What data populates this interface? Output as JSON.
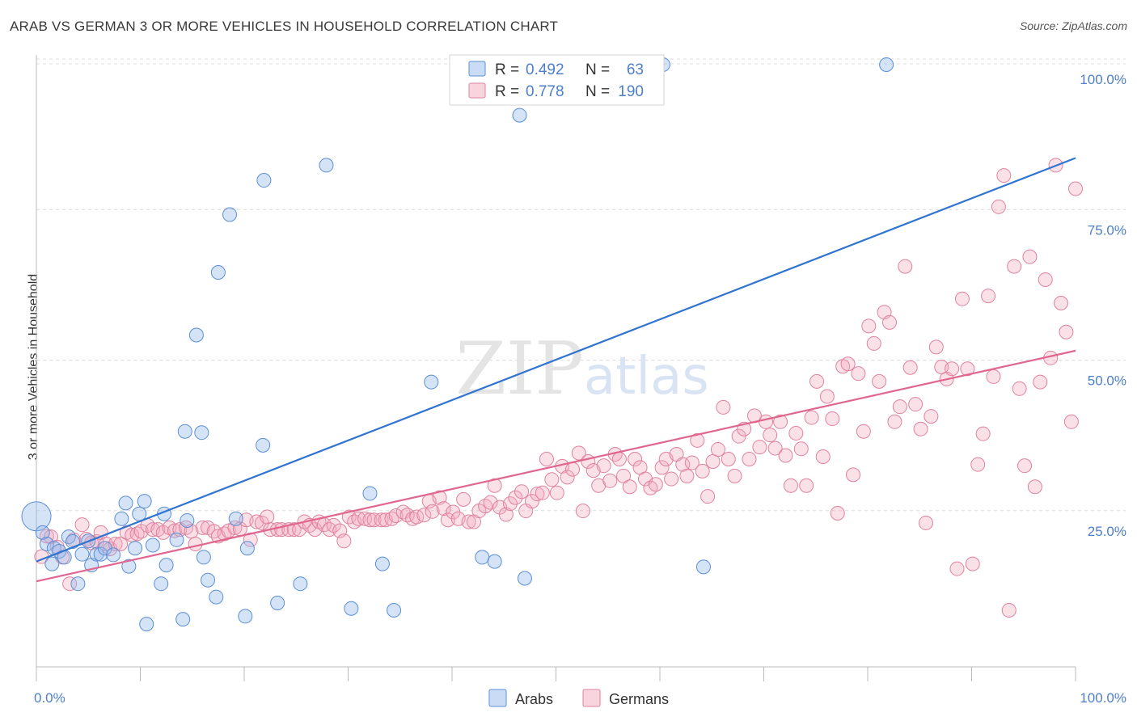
{
  "title": "ARAB VS GERMAN 3 OR MORE VEHICLES IN HOUSEHOLD CORRELATION CHART",
  "source": "Source: ZipAtlas.com",
  "watermark": "ZIPatlas",
  "colors": {
    "arabs": "#5b8fd6",
    "germans": "#e0829e",
    "arabs_line": "#2f74d0",
    "germans_line": "#e0668f",
    "tick_text": "#4d7fcc",
    "grid": "#dcdcdc"
  },
  "legend": {
    "rows": [
      {
        "r_label": "R =",
        "r_value": "0.492",
        "n_label": "N =",
        "n_value": "63"
      },
      {
        "r_label": "R =",
        "r_value": "0.778",
        "n_label": "N =",
        "n_value": "190"
      }
    ]
  },
  "chart_data": {
    "type": "scatter",
    "title": "ARAB VS GERMAN 3 OR MORE VEHICLES IN HOUSEHOLD CORRELATION CHART",
    "ylabel": "3 or more Vehicles in Household",
    "xlabel": "",
    "xlim": [
      0,
      100
    ],
    "ylim": [
      0,
      100
    ],
    "x_tick_labels": [
      "0.0%",
      "100.0%"
    ],
    "y_tick_labels": [
      "25.0%",
      "50.0%",
      "75.0%",
      "100.0%"
    ],
    "y_ticks": [
      25,
      50,
      75,
      100
    ],
    "grid": true,
    "legend_position": "bottom",
    "series": [
      {
        "name": "Arabs",
        "r": 0.492,
        "n": 63,
        "trend": {
          "x": [
            0,
            100
          ],
          "y": [
            17.5,
            84.5
          ]
        },
        "points": [
          [
            0,
            25
          ],
          [
            0.6,
            22.3
          ],
          [
            1,
            20.4
          ],
          [
            1.5,
            17.1
          ],
          [
            1.7,
            19.7
          ],
          [
            2.2,
            19.2
          ],
          [
            2.7,
            18.2
          ],
          [
            3.1,
            21.6
          ],
          [
            3.5,
            20.8
          ],
          [
            4,
            13.8
          ],
          [
            4.4,
            18.7
          ],
          [
            5,
            20.9
          ],
          [
            5.3,
            16.9
          ],
          [
            5.8,
            18.7
          ],
          [
            6.2,
            18.7
          ],
          [
            6.6,
            19.7
          ],
          [
            7.4,
            18.6
          ],
          [
            8.2,
            24.6
          ],
          [
            8.6,
            27.2
          ],
          [
            8.9,
            16.7
          ],
          [
            9.5,
            19.7
          ],
          [
            9.9,
            25.4
          ],
          [
            10.4,
            27.5
          ],
          [
            10.6,
            7.1
          ],
          [
            11.2,
            20.2
          ],
          [
            12,
            13.8
          ],
          [
            12.3,
            25.4
          ],
          [
            12.5,
            16.9
          ],
          [
            13.5,
            21.1
          ],
          [
            14.1,
            7.9
          ],
          [
            14.3,
            39.1
          ],
          [
            14.5,
            24.3
          ],
          [
            15.4,
            55.1
          ],
          [
            15.9,
            38.9
          ],
          [
            16.1,
            18.2
          ],
          [
            16.5,
            14.4
          ],
          [
            17.3,
            11.6
          ],
          [
            17.5,
            65.5
          ],
          [
            18.6,
            75.1
          ],
          [
            19.2,
            24.6
          ],
          [
            20.1,
            8.4
          ],
          [
            20.3,
            19.7
          ],
          [
            21.8,
            36.8
          ],
          [
            21.9,
            80.8
          ],
          [
            23.2,
            10.6
          ],
          [
            25.4,
            13.8
          ],
          [
            27.9,
            83.3
          ],
          [
            30.3,
            9.7
          ],
          [
            32.1,
            28.8
          ],
          [
            33.3,
            17.1
          ],
          [
            34.4,
            9.4
          ],
          [
            38,
            47.3
          ],
          [
            42.9,
            18.2
          ],
          [
            44.1,
            17.5
          ],
          [
            46.5,
            91.6
          ],
          [
            47,
            14.7
          ],
          [
            60.3,
            100
          ],
          [
            64.2,
            16.6
          ],
          [
            81.8,
            100
          ]
        ]
      },
      {
        "name": "Germans",
        "r": 0.778,
        "n": 190,
        "trend": {
          "x": [
            0,
            100
          ],
          "y": [
            14.2,
            52.5
          ]
        },
        "points": [
          [
            0.5,
            18.3
          ],
          [
            1,
            21.7
          ],
          [
            1.4,
            21.6
          ],
          [
            2,
            19.9
          ],
          [
            2.5,
            18.2
          ],
          [
            3.2,
            13.8
          ],
          [
            3.6,
            21.1
          ],
          [
            4.4,
            23.6
          ],
          [
            4.8,
            21.2
          ],
          [
            5.3,
            20.6
          ],
          [
            5.8,
            20.8
          ],
          [
            6.2,
            22.3
          ],
          [
            6.7,
            20.4
          ],
          [
            7.1,
            19.6
          ],
          [
            7.6,
            20.4
          ],
          [
            8.1,
            20.4
          ],
          [
            8.7,
            22.3
          ],
          [
            9.2,
            21.9
          ],
          [
            9.7,
            22.1
          ],
          [
            10.1,
            22.5
          ],
          [
            10.7,
            23.5
          ],
          [
            11.2,
            22.8
          ],
          [
            11.7,
            22.8
          ],
          [
            12.2,
            22.3
          ],
          [
            12.8,
            23.1
          ],
          [
            13.3,
            22.6
          ],
          [
            13.8,
            22.8
          ],
          [
            14.4,
            23.1
          ],
          [
            14.9,
            22.5
          ],
          [
            15.3,
            20.4
          ],
          [
            16,
            23.1
          ],
          [
            16.5,
            23.1
          ],
          [
            17.1,
            22.5
          ],
          [
            17.5,
            21.7
          ],
          [
            18.1,
            22.1
          ],
          [
            18.5,
            22.6
          ],
          [
            19.1,
            23.1
          ],
          [
            19.6,
            22.9
          ],
          [
            20.2,
            24.4
          ],
          [
            20.6,
            21.1
          ],
          [
            21.2,
            24.1
          ],
          [
            21.7,
            23.9
          ],
          [
            22.2,
            24.9
          ],
          [
            22.5,
            22.8
          ],
          [
            23.2,
            22.8
          ],
          [
            23.6,
            22.8
          ],
          [
            24.3,
            22.8
          ],
          [
            24.8,
            22.8
          ],
          [
            25.3,
            22.8
          ],
          [
            25.8,
            24.1
          ],
          [
            26.3,
            23.5
          ],
          [
            26.8,
            22.8
          ],
          [
            27.2,
            24.1
          ],
          [
            27.7,
            23.6
          ],
          [
            28.2,
            22.8
          ],
          [
            28.6,
            23.5
          ],
          [
            29.2,
            22.6
          ],
          [
            29.6,
            20.9
          ],
          [
            30.1,
            24.9
          ],
          [
            30.6,
            24.1
          ],
          [
            31,
            24.6
          ],
          [
            31.6,
            24.6
          ],
          [
            32.1,
            24.4
          ],
          [
            32.5,
            24.4
          ],
          [
            33.2,
            24.4
          ],
          [
            33.6,
            24.4
          ],
          [
            34.2,
            24.6
          ],
          [
            34.6,
            25.1
          ],
          [
            35.3,
            25.7
          ],
          [
            35.7,
            25.2
          ],
          [
            36.2,
            24.6
          ],
          [
            36.6,
            24.9
          ],
          [
            37.3,
            25.2
          ],
          [
            37.8,
            27.5
          ],
          [
            38.1,
            25.8
          ],
          [
            38.8,
            28.1
          ],
          [
            39.2,
            26.3
          ],
          [
            39.6,
            24.4
          ],
          [
            40.1,
            25.7
          ],
          [
            40.6,
            24.6
          ],
          [
            41.1,
            27.8
          ],
          [
            41.6,
            24.1
          ],
          [
            42.1,
            24.1
          ],
          [
            42.6,
            25.9
          ],
          [
            43.2,
            26.7
          ],
          [
            43.7,
            27.3
          ],
          [
            44.1,
            30.1
          ],
          [
            44.6,
            26.5
          ],
          [
            45.2,
            25.3
          ],
          [
            45.6,
            27.1
          ],
          [
            46.1,
            28.1
          ],
          [
            46.7,
            29.1
          ],
          [
            47.1,
            25.9
          ],
          [
            47.7,
            27.5
          ],
          [
            48.2,
            28.7
          ],
          [
            48.7,
            28.9
          ],
          [
            49.1,
            34.5
          ],
          [
            49.6,
            31.1
          ],
          [
            50.1,
            28.9
          ],
          [
            50.6,
            33.3
          ],
          [
            51.1,
            31.5
          ],
          [
            51.6,
            32.8
          ],
          [
            52.2,
            35.5
          ],
          [
            52.6,
            25.9
          ],
          [
            53.1,
            34.1
          ],
          [
            53.6,
            32.6
          ],
          [
            54.1,
            30.1
          ],
          [
            54.6,
            33.4
          ],
          [
            55.2,
            30.9
          ],
          [
            55.7,
            35.3
          ],
          [
            56.1,
            34.5
          ],
          [
            56.5,
            31.7
          ],
          [
            57.1,
            29.9
          ],
          [
            57.6,
            34.5
          ],
          [
            58.1,
            33.1
          ],
          [
            58.6,
            31.2
          ],
          [
            59.1,
            29.7
          ],
          [
            59.6,
            30.3
          ],
          [
            60.2,
            33.1
          ],
          [
            60.6,
            34.5
          ],
          [
            61.1,
            31.2
          ],
          [
            61.6,
            35.3
          ],
          [
            62.2,
            33.6
          ],
          [
            62.6,
            31.7
          ],
          [
            63.1,
            33.9
          ],
          [
            63.6,
            37.6
          ],
          [
            64.1,
            32.5
          ],
          [
            64.6,
            28.3
          ],
          [
            65.1,
            34.1
          ],
          [
            65.6,
            36.1
          ],
          [
            66.1,
            43.1
          ],
          [
            66.6,
            34.5
          ],
          [
            67.2,
            31.7
          ],
          [
            67.6,
            38.3
          ],
          [
            68.1,
            39.5
          ],
          [
            68.6,
            34.5
          ],
          [
            69.1,
            41.7
          ],
          [
            69.6,
            36.5
          ],
          [
            70.2,
            40.7
          ],
          [
            70.6,
            38.5
          ],
          [
            71.1,
            36.3
          ],
          [
            71.6,
            40.7
          ],
          [
            72.1,
            35.1
          ],
          [
            72.6,
            30.1
          ],
          [
            73.1,
            38.8
          ],
          [
            73.6,
            36.2
          ],
          [
            74.1,
            30.1
          ],
          [
            74.6,
            41.4
          ],
          [
            75.1,
            47.4
          ],
          [
            75.7,
            34.9
          ],
          [
            76.1,
            44.9
          ],
          [
            76.6,
            41.2
          ],
          [
            77.1,
            25.5
          ],
          [
            77.6,
            49.9
          ],
          [
            78.1,
            50.3
          ],
          [
            78.6,
            31.9
          ],
          [
            79.1,
            48.7
          ],
          [
            79.6,
            39.1
          ],
          [
            80.1,
            56.6
          ],
          [
            80.6,
            53.7
          ],
          [
            81.1,
            47.4
          ],
          [
            81.6,
            58.9
          ],
          [
            82.1,
            57.2
          ],
          [
            82.6,
            40.7
          ],
          [
            83.1,
            43.2
          ],
          [
            83.6,
            66.5
          ],
          [
            84.1,
            49.7
          ],
          [
            84.6,
            43.6
          ],
          [
            85.1,
            39.5
          ],
          [
            85.6,
            23.9
          ],
          [
            86.1,
            41.6
          ],
          [
            86.6,
            53.1
          ],
          [
            87.1,
            49.8
          ],
          [
            87.6,
            47.8
          ],
          [
            88.1,
            49.5
          ],
          [
            88.6,
            16.3
          ],
          [
            89.1,
            61.1
          ],
          [
            89.6,
            49.5
          ],
          [
            90.1,
            17.1
          ],
          [
            90.6,
            33.6
          ],
          [
            91.1,
            38.7
          ],
          [
            91.6,
            61.6
          ],
          [
            92.1,
            48.2
          ],
          [
            92.6,
            76.4
          ],
          [
            93.1,
            81.6
          ],
          [
            93.6,
            9.4
          ],
          [
            94.1,
            66.5
          ],
          [
            94.6,
            46.2
          ],
          [
            95.1,
            33.4
          ],
          [
            95.6,
            68.1
          ],
          [
            96.1,
            29.9
          ],
          [
            96.6,
            47.3
          ],
          [
            97.1,
            64.3
          ],
          [
            97.6,
            51.3
          ],
          [
            98.1,
            83.3
          ],
          [
            98.6,
            60.4
          ],
          [
            99.1,
            55.6
          ],
          [
            99.6,
            40.7
          ],
          [
            100,
            79.4
          ]
        ]
      }
    ]
  },
  "bottom_legend": {
    "arabs": "Arabs",
    "germans": "Germans"
  }
}
